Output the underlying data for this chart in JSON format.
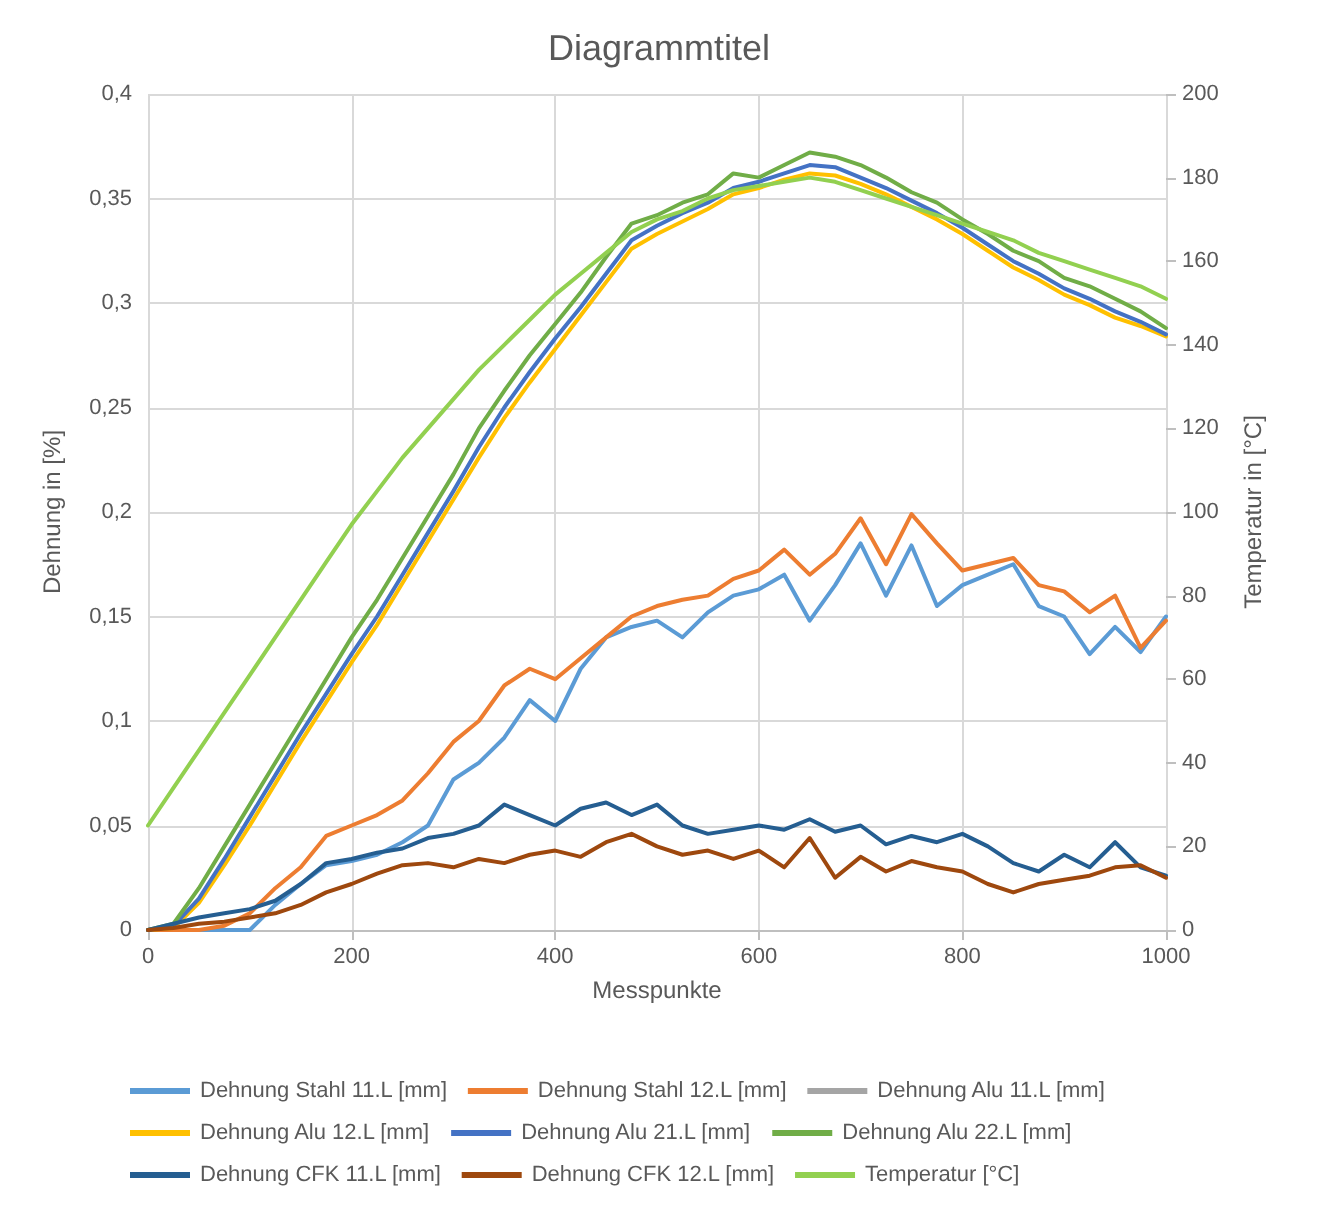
{
  "chart_data": {
    "type": "line",
    "title": "Diagrammtitel",
    "xlabel": "Messpunkte",
    "ylabel": "Dehnung in [%]",
    "y2label": "Temperatur in [°C]",
    "x": [
      0,
      25,
      50,
      75,
      100,
      125,
      150,
      175,
      200,
      225,
      250,
      275,
      300,
      325,
      350,
      375,
      400,
      425,
      450,
      475,
      500,
      525,
      550,
      575,
      600,
      625,
      650,
      675,
      700,
      725,
      750,
      775,
      800,
      825,
      850,
      875,
      900,
      925,
      950,
      975,
      1000
    ],
    "xlim": [
      0,
      1000
    ],
    "xticks": [
      0,
      200,
      400,
      600,
      800,
      1000
    ],
    "ylim": [
      0,
      0.4
    ],
    "yticks": [
      0,
      {
        "value": 0.05,
        "label": "0,05"
      },
      {
        "value": 0.1,
        "label": "0,1"
      },
      {
        "value": 0.15,
        "label": "0,15"
      },
      {
        "value": 0.2,
        "label": "0,2"
      },
      {
        "value": 0.25,
        "label": "0,25"
      },
      {
        "value": 0.3,
        "label": "0,3"
      },
      {
        "value": 0.35,
        "label": "0,35"
      },
      {
        "value": 0.4,
        "label": "0,4"
      }
    ],
    "y2lim": [
      0,
      200
    ],
    "y2ticks": [
      0,
      20,
      40,
      60,
      80,
      100,
      120,
      140,
      160,
      180,
      200
    ],
    "grid": true,
    "legend": "bottom",
    "marker": "none",
    "line_style": "solid",
    "series": [
      {
        "name": "Dehnung Stahl 11.L [mm]",
        "color": "#5b9bd5",
        "values": [
          0,
          0,
          0,
          0,
          0,
          0.012,
          0.022,
          0.031,
          0.033,
          0.036,
          0.042,
          0.05,
          0.072,
          0.08,
          0.092,
          0.11,
          0.1,
          0.125,
          0.14,
          0.145,
          0.148,
          0.14,
          0.152,
          0.16,
          0.163,
          0.17,
          0.148,
          0.165,
          0.185,
          0.16,
          0.184,
          0.155,
          0.165,
          0.17,
          0.175,
          0.155,
          0.15,
          0.132,
          0.145,
          0.133,
          0.15
        ]
      },
      {
        "name": "Dehnung Stahl 12.L [mm]",
        "color": "#ed7d31",
        "values": [
          0,
          0,
          0,
          0.002,
          0.008,
          0.02,
          0.03,
          0.045,
          0.05,
          0.055,
          0.062,
          0.075,
          0.09,
          0.1,
          0.117,
          0.125,
          0.12,
          0.13,
          0.14,
          0.15,
          0.155,
          0.158,
          0.16,
          0.168,
          0.172,
          0.182,
          0.17,
          0.18,
          0.197,
          0.175,
          0.199,
          0.185,
          0.172,
          0.175,
          0.178,
          0.165,
          0.162,
          0.152,
          0.16,
          0.135,
          0.148
        ]
      },
      {
        "name": "Dehnung Alu 11.L [mm]",
        "color": "#a5a5a5",
        "values": [
          null,
          null,
          null,
          null,
          null,
          null,
          null,
          null,
          null,
          null,
          null,
          null,
          null,
          null,
          null,
          null,
          null,
          null,
          null,
          null,
          null,
          null,
          null,
          null,
          null,
          null,
          null,
          null,
          null,
          null,
          null,
          null,
          null,
          null,
          null,
          null,
          null,
          null,
          null,
          null,
          null
        ]
      },
      {
        "name": "Dehnung Alu 12.L [mm]",
        "color": "#ffc000",
        "values": [
          0,
          0.001,
          0.013,
          0.031,
          0.05,
          0.07,
          0.09,
          0.109,
          0.128,
          0.146,
          0.166,
          0.186,
          0.206,
          0.226,
          0.245,
          0.262,
          0.278,
          0.294,
          0.31,
          0.326,
          0.333,
          0.339,
          0.345,
          0.352,
          0.355,
          0.359,
          0.362,
          0.361,
          0.357,
          0.352,
          0.346,
          0.34,
          0.333,
          0.325,
          0.317,
          0.311,
          0.304,
          0.299,
          0.293,
          0.289,
          0.284
        ]
      },
      {
        "name": "Dehnung Alu 21.L [mm]",
        "color": "#4472c4",
        "values": [
          0,
          0.002,
          0.015,
          0.034,
          0.054,
          0.074,
          0.094,
          0.113,
          0.132,
          0.15,
          0.17,
          0.19,
          0.21,
          0.231,
          0.25,
          0.267,
          0.283,
          0.298,
          0.314,
          0.33,
          0.337,
          0.343,
          0.348,
          0.355,
          0.358,
          0.362,
          0.366,
          0.365,
          0.36,
          0.355,
          0.349,
          0.343,
          0.336,
          0.328,
          0.32,
          0.314,
          0.307,
          0.302,
          0.296,
          0.291,
          0.285
        ]
      },
      {
        "name": "Dehnung Alu 22.L [mm]",
        "color": "#70ad47",
        "values": [
          0,
          0.003,
          0.02,
          0.04,
          0.06,
          0.08,
          0.1,
          0.12,
          0.14,
          0.158,
          0.178,
          0.198,
          0.218,
          0.24,
          0.258,
          0.275,
          0.29,
          0.305,
          0.322,
          0.338,
          0.342,
          0.348,
          0.352,
          0.362,
          0.36,
          0.366,
          0.372,
          0.37,
          0.366,
          0.36,
          0.353,
          0.348,
          0.34,
          0.333,
          0.325,
          0.32,
          0.312,
          0.308,
          0.302,
          0.296,
          0.288
        ]
      },
      {
        "name": "Dehnung CFK 11.L [mm]",
        "color": "#255e91",
        "values": [
          0,
          0.003,
          0.006,
          0.008,
          0.01,
          0.014,
          0.022,
          0.032,
          0.034,
          0.037,
          0.039,
          0.044,
          0.046,
          0.05,
          0.06,
          0.055,
          0.05,
          0.058,
          0.061,
          0.055,
          0.06,
          0.05,
          0.046,
          0.048,
          0.05,
          0.048,
          0.053,
          0.047,
          0.05,
          0.041,
          0.045,
          0.042,
          0.046,
          0.04,
          0.032,
          0.028,
          0.036,
          0.03,
          0.042,
          0.03,
          0.026
        ]
      },
      {
        "name": "Dehnung CFK 12.L [mm]",
        "color": "#9e480e",
        "values": [
          0,
          0.001,
          0.003,
          0.004,
          0.006,
          0.008,
          0.012,
          0.018,
          0.022,
          0.027,
          0.031,
          0.032,
          0.03,
          0.034,
          0.032,
          0.036,
          0.038,
          0.035,
          0.042,
          0.046,
          0.04,
          0.036,
          0.038,
          0.034,
          0.038,
          0.03,
          0.044,
          0.025,
          0.035,
          0.028,
          0.033,
          0.03,
          0.028,
          0.022,
          0.018,
          0.022,
          0.024,
          0.026,
          0.03,
          0.031,
          0.025
        ]
      },
      {
        "name": "Temperatur [°C]",
        "color": "#92d050",
        "axis": "y2",
        "values": [
          25,
          34,
          43,
          52,
          61,
          70,
          79,
          88,
          97,
          105,
          113,
          120,
          127,
          134,
          140,
          146,
          152,
          157,
          162,
          167,
          170,
          172,
          175,
          177,
          178,
          179,
          180,
          179,
          177,
          175,
          173,
          171,
          169,
          167,
          165,
          162,
          160,
          158,
          156,
          154,
          151
        ]
      }
    ]
  }
}
